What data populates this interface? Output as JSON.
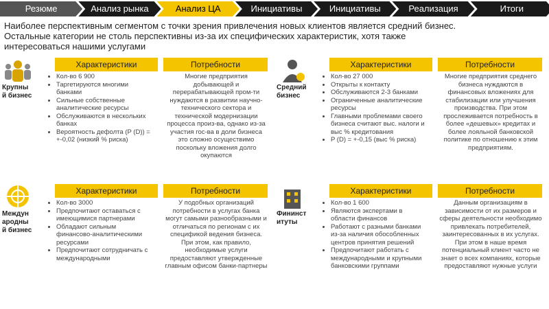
{
  "nav": [
    "Резюме",
    "Анализ рынка",
    "Анализ ЦА",
    "Инициативы",
    "Инициативы",
    "Реализация",
    "Итоги"
  ],
  "nav_active": 2,
  "intro": [
    "Наиболее перспективным сегментом с точки зрения привлечения новых клиентов является средний бизнес.",
    "Остальные категории не столь перспективны из-за их специфических характеристик, хотя также",
    "интересоваться нашими услугами"
  ],
  "quadrants": [
    {
      "label": "Крупный бизнес",
      "characteristics_header": "Характеристики",
      "characteristics": [
        "Кол-во 6 900",
        "Таргетируются многими банками",
        "Сильные собственные аналитические ресурсы",
        "Обслуживаются в нескольких банках",
        "Вероятность дефолта (P (D)) = +-0,02 (низкий % риска)"
      ],
      "needs_header": "Потребности",
      "needs": "Многие предприятия добывающей и перерабатывающей пром-ти нуждаются в развитии научно-технического сектора и технической модернизации процесса произ-ва, однако из-за участия гос-ва в доли бизнеса это сложно осуществимо поскольку вложения долго окупаются"
    },
    {
      "label": "Средний бизнес",
      "characteristics_header": "Характеристики",
      "characteristics": [
        "Кол-во 27 000",
        "Открыты к контакту",
        "Обслуживаются 2-3 банками",
        "Ограниченные аналитические ресурсы",
        "Главными проблемами своего бизнеса считают выс. налоги и выс % кредитования",
        "P (D) = +-0,15 (выс % риска)"
      ],
      "needs_header": "Потребности",
      "needs": "Многие предприятия среднего бизнеса нуждаются в финансовых вложениях для стабилизации или улучшения производства. При этом прослеживается потребность в более «дешевых» кредитах и более лояльной банковской политике по отношению к этим предприятиям."
    },
    {
      "label": "Международный бизнес",
      "characteristics_header": "Характеристики",
      "characteristics": [
        "Кол-во 3000",
        "Предпочитают оставаться с имеющимися партнерами",
        "Обладают сильным финансово-аналитическими ресурсами",
        "Предпочитают сотрудничать с международными"
      ],
      "needs_header": "Потребности",
      "needs": "У подобных организаций потребности в услугах банка могут самыми разнообразными и отличаться по регионам с их спецификой ведения бизнеса. При этом, как правило, необходимые услуги предоставляют утвержденные главным офисом банки-партнеры"
    },
    {
      "label": "Фининституты",
      "characteristics_header": "Характеристики",
      "characteristics": [
        "Кол-во 1 600",
        "Являются экспертами в области финансов",
        "Работают с разными банками из-за наличия обособленных центров принятия решений",
        "Предпочитают работать с международными и крупными банковскими группами"
      ],
      "needs_header": "Потребности",
      "needs": "Данным организациям в зависимости от их размеров и сферы деятельности необходимо привлекать потребителей, заинтересованных в их услугах. При этом в наше время потенциальный клиент часто не знает о всех компаниях, которые предоставляют нужные услуги"
    }
  ]
}
